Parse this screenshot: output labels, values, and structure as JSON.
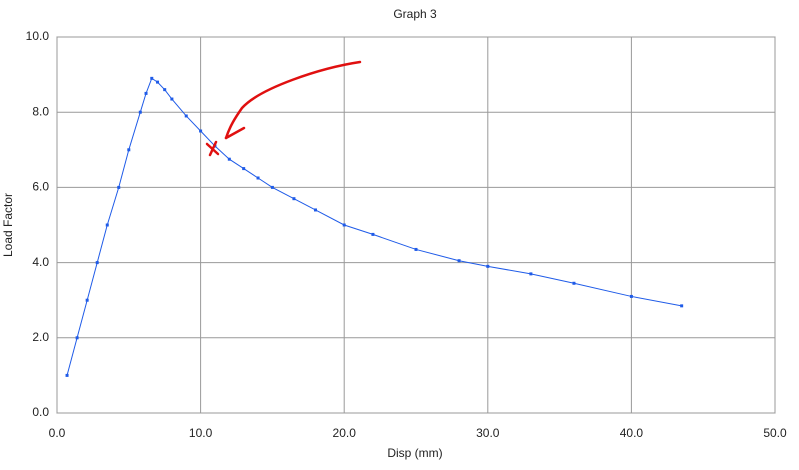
{
  "chart_data": {
    "type": "line",
    "title": "Graph  3",
    "x_label": "Disp  (mm)",
    "y_label": "Load Factor",
    "x": [
      0.7,
      1.4,
      2.1,
      2.8,
      3.5,
      4.3,
      5.0,
      5.8,
      6.2,
      6.6,
      7.0,
      7.5,
      8.0,
      9.0,
      10.0,
      11.0,
      12.0,
      13.0,
      14.0,
      15.0,
      16.5,
      18.0,
      20.0,
      22.0,
      25.0,
      28.0,
      30.0,
      33.0,
      36.0,
      40.0,
      43.5
    ],
    "series": [
      {
        "name": "Load Factor",
        "color": "#1f5be8",
        "values": [
          1.0,
          2.0,
          3.0,
          4.0,
          5.0,
          6.0,
          7.0,
          8.0,
          8.5,
          8.9,
          8.8,
          8.6,
          8.35,
          7.9,
          7.5,
          7.1,
          6.75,
          6.5,
          6.25,
          6.0,
          5.7,
          5.4,
          5.0,
          4.75,
          4.35,
          4.05,
          3.9,
          3.7,
          3.45,
          3.1,
          2.85
        ]
      }
    ],
    "xlim": [
      0,
      50
    ],
    "ylim": [
      0,
      10
    ],
    "xticks": [
      {
        "value": 0,
        "label": "0.0"
      },
      {
        "value": 10,
        "label": "10.0"
      },
      {
        "value": 20,
        "label": "20.0"
      },
      {
        "value": 30,
        "label": "30.0"
      },
      {
        "value": 40,
        "label": "40.0"
      },
      {
        "value": 50,
        "label": "50.0"
      }
    ],
    "yticks": [
      {
        "value": 0,
        "label": "0.0"
      },
      {
        "value": 2,
        "label": "2.0"
      },
      {
        "value": 4,
        "label": "4.0"
      },
      {
        "value": 6,
        "label": "6.0"
      },
      {
        "value": 8,
        "label": "8.0"
      },
      {
        "value": 10,
        "label": "10.0"
      }
    ],
    "grid": true
  }
}
